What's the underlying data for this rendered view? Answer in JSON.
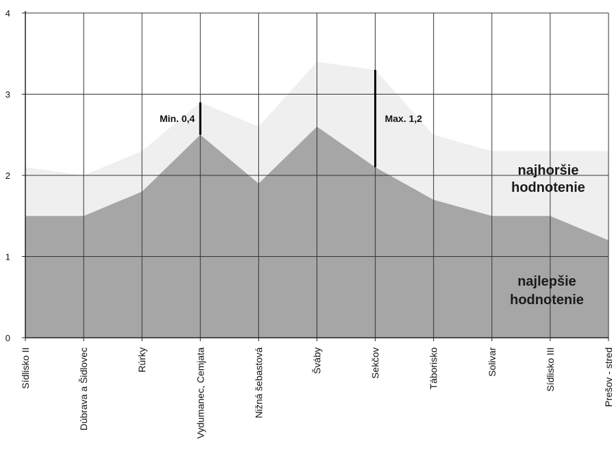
{
  "chart_data": {
    "type": "area",
    "categories": [
      "Sídlisko II",
      "Dúbrava a Šidlovec",
      "Rúrky",
      "Vydumanec, Cemjata",
      "Nižná šebastová",
      "Šváby",
      "Sekčov",
      "Táborisko",
      "Solivar",
      "Sídlisko III",
      "Prešov - stred"
    ],
    "series": [
      {
        "name": "najhoršie hodnotenie",
        "values": [
          2.1,
          2.0,
          2.3,
          2.9,
          2.6,
          3.4,
          3.3,
          2.5,
          2.3,
          2.3,
          2.3
        ],
        "color": "#efefef"
      },
      {
        "name": "najlepšie hodnotenie",
        "values": [
          1.5,
          1.5,
          1.8,
          2.5,
          1.9,
          2.6,
          2.1,
          1.7,
          1.5,
          1.5,
          1.2
        ],
        "color": "#a6a6a6"
      }
    ],
    "ylim": [
      0,
      4
    ],
    "yticks": [
      "0",
      "1",
      "2",
      "3",
      "4"
    ],
    "grid": true,
    "area_labels": {
      "worst": [
        "najhoršie",
        "hodnotenie"
      ],
      "best": [
        "najlepšie",
        "hodnotenie"
      ]
    },
    "annotations": [
      {
        "text": "Min. 0,4",
        "category_index": 3,
        "from": 2.5,
        "to": 2.9
      },
      {
        "text": "Max. 1,2",
        "category_index": 6,
        "from": 2.1,
        "to": 3.3
      }
    ]
  }
}
